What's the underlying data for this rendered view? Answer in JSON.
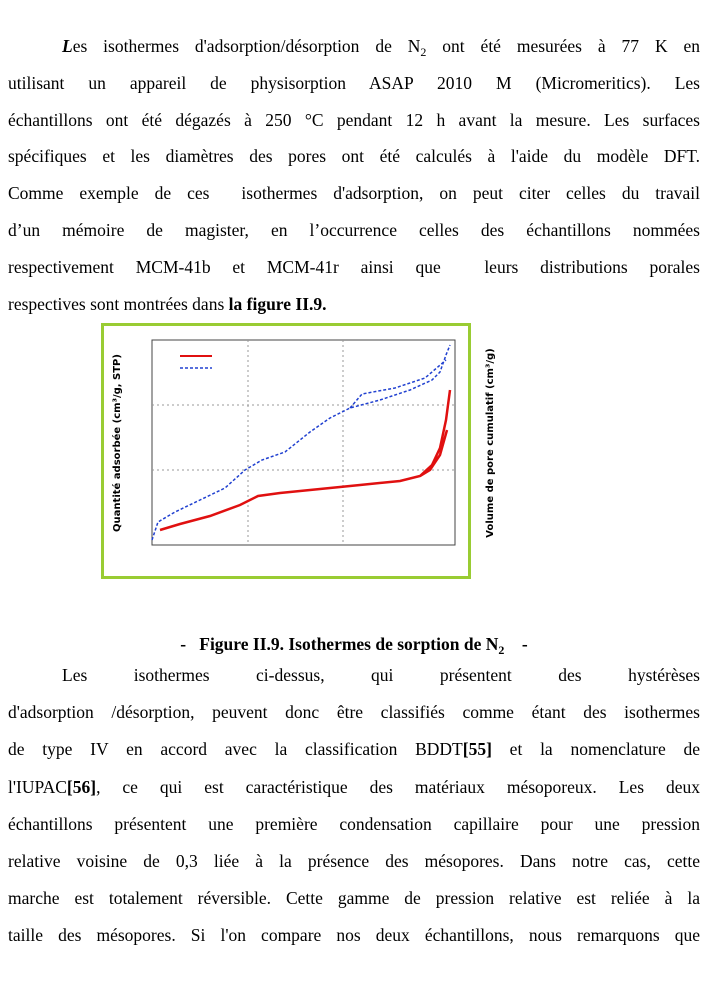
{
  "paragraph_1": {
    "lines": [
      [
        {
          "text": "L",
          "bold": true,
          "italic": true
        },
        {
          "text": "es isothermes d'adsorption/désorption de N"
        },
        {
          "text": "2",
          "sub": true
        },
        {
          "text": " ont été mesurées à 77 K en"
        }
      ],
      [
        {
          "text": "utilisant un appareil de physisorption ASAP 2010 M (Micromeritics). Les"
        }
      ],
      [
        {
          "text": "échantillons ont été dégazés à 250 °C pendant 12 h avant la mesure. Les surfaces"
        }
      ],
      [
        {
          "text": "spécifiques et les diamètres des pores ont été calculés à l'aide du modèle DFT."
        }
      ],
      [
        {
          "text": "Comme exemple de ces  isothermes d'adsorption, on peut citer celles du travail"
        }
      ],
      [
        {
          "text": "d’un mémoire de magister, en l’occurrence celles des échantillons nommées"
        }
      ],
      [
        {
          "text": "respectivement MCM-41b et MCM-41r ainsi que  leurs distributions porales"
        }
      ],
      [
        {
          "text": "respectives sont montrées dans "
        },
        {
          "text": "la figure II.9.",
          "bold": true
        }
      ]
    ]
  },
  "figure": {
    "y_label": "Quantité adsorbée (cm³/g, STP)",
    "y2_label": "Volume de pore cumulatif (cm³/g)"
  },
  "caption": [
    {
      "text": "-   Figure II.9. Isothermes de sorption de N",
      "bold": true
    },
    {
      "text": "2",
      "bold": true,
      "sub": true
    },
    {
      "text": "    -",
      "bold": true
    }
  ],
  "paragraph_2": {
    "lines": [
      [
        {
          "text": "Les isothermes ci-dessus, qui présentent des hystérèses"
        }
      ],
      [
        {
          "text": "d'adsorption /désorption, peuvent donc être classifiés comme étant des isothermes"
        }
      ],
      [
        {
          "text": "de type IV en accord avec la classification BDDT"
        },
        {
          "text": "[55]",
          "bold": true
        },
        {
          "text": " et la nomenclature de"
        }
      ],
      [
        {
          "text": "l'IUPAC"
        },
        {
          "text": "[56]",
          "bold": true
        },
        {
          "text": ", ce qui est caractéristique des matériaux mésoporeux. Les deux"
        }
      ],
      [
        {
          "text": "échantillons présentent une première condensation capillaire pour une pression"
        }
      ],
      [
        {
          "text": "relative voisine de 0,3 liée à la présence des mésopores. Dans notre cas, cette"
        }
      ],
      [
        {
          "text": "marche est totalement réversible. Cette gamme de pression relative est reliée à la"
        }
      ],
      [
        {
          "text": "taille des mésopores. Si l'on compare nos deux échantillons, nous remarquons que"
        }
      ]
    ]
  }
}
